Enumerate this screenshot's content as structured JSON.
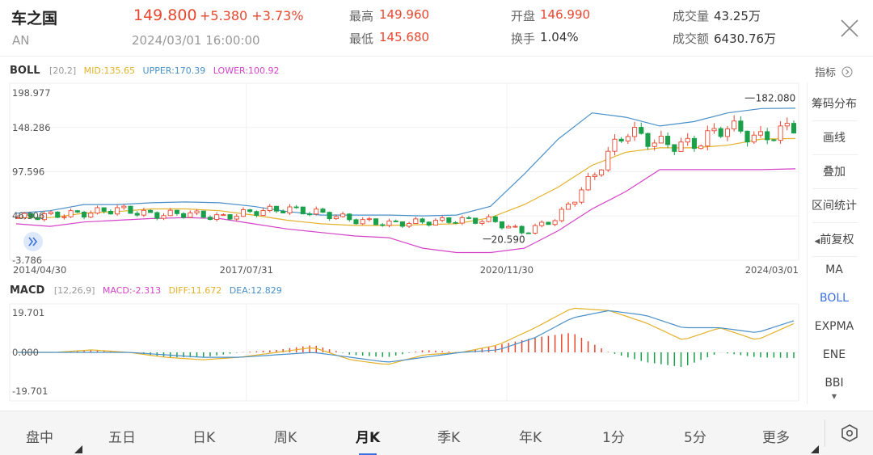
{
  "stock": {
    "name": "车之国",
    "code": "AN",
    "price": "149.800",
    "change": "+5.380 +3.73%",
    "time": "2024/03/01 16:00:00"
  },
  "stats": {
    "high_label": "最高",
    "high": "149.960",
    "low_label": "最低",
    "low": "145.680",
    "open_label": "开盘",
    "open": "146.990",
    "turnover_label": "换手",
    "turnover": "1.04%",
    "volume_label": "成交量",
    "volume": "43.25万",
    "amount_label": "成交额",
    "amount": "6430.76万"
  },
  "boll": {
    "name": "BOLL",
    "params": "[20,2]",
    "mid": "MID:135.65",
    "upper": "UPPER:170.39",
    "lower": "LOWER:100.92",
    "indicator_btn": "指标"
  },
  "macd": {
    "name": "MACD",
    "params": "[12,26,9]",
    "macd": "MACD:-2.313",
    "diff": "DIFF:11.672",
    "dea": "DEA:12.829"
  },
  "price_axis": [
    "198.977",
    "148.286",
    "97.596",
    "46.906",
    "-3.786"
  ],
  "macd_axis": [
    "19.701",
    "0.000",
    "-19.701"
  ],
  "date_axis": [
    "2014/04/30",
    "2017/07/31",
    "2020/11/30",
    "2024/03/01"
  ],
  "markers": {
    "high": "182.080",
    "low": "20.590"
  },
  "sidebar": {
    "items": [
      "筹码分布",
      "画线",
      "叠加",
      "区间统计",
      "前复权"
    ],
    "indicators": [
      "MA",
      "BOLL",
      "EXPMA",
      "ENE",
      "BBI"
    ]
  },
  "tabs": [
    "盘中",
    "五日",
    "日K",
    "周K",
    "月K",
    "季K",
    "年K",
    "1分",
    "5分",
    "更多"
  ],
  "colors": {
    "up": "#e8472f",
    "down": "#1aa04a",
    "mid": "#e3b12a",
    "upper": "#4a90c8",
    "lower": "#d442c8",
    "active": "#3b72e0"
  },
  "chart_data": [
    {
      "type": "candlestick",
      "title": "BOLL [20,2]",
      "x_start": "2014/04/30",
      "x_end": "2024/03/01",
      "x_ticks": [
        "2014/04/30",
        "2017/07/31",
        "2020/11/30",
        "2024/03/01"
      ],
      "ylim": [
        -3.786,
        198.977
      ],
      "y_ticks": [
        198.977,
        148.286,
        97.596,
        46.906,
        -3.786
      ],
      "annotations": [
        {
          "label": "182.080",
          "type": "max"
        },
        {
          "label": "20.590",
          "type": "min"
        }
      ],
      "series": [
        {
          "name": "MID",
          "values": [
            45,
            45,
            50,
            52,
            55,
            55,
            53,
            48,
            42,
            38,
            36,
            36,
            37,
            38,
            45,
            60,
            80,
            105,
            120,
            125,
            125,
            128,
            135,
            135.65
          ]
        },
        {
          "name": "UPPER",
          "values": [
            50,
            53,
            60,
            60,
            62,
            63,
            62,
            58,
            52,
            48,
            48,
            48,
            47,
            48,
            58,
            95,
            135,
            165,
            160,
            150,
            155,
            165,
            170,
            170.39
          ]
        },
        {
          "name": "LOWER",
          "values": [
            38,
            35,
            40,
            42,
            44,
            45,
            44,
            38,
            32,
            28,
            24,
            22,
            10,
            5,
            5,
            10,
            30,
            55,
            75,
            100,
            100,
            100,
            100,
            100.92
          ]
        },
        {
          "name": "Close",
          "values": [
            45,
            48,
            50,
            55,
            48,
            50,
            45,
            52,
            55,
            50,
            42,
            38,
            40,
            42,
            42,
            28,
            45,
            90,
            145,
            130,
            128,
            150,
            135,
            149.8
          ]
        }
      ]
    },
    {
      "type": "line",
      "title": "MACD [12,26,9]",
      "ylim": [
        -19.701,
        19.701
      ],
      "y_ticks": [
        19.701,
        0.0,
        -19.701
      ],
      "series": [
        {
          "name": "DIFF",
          "values": [
            0,
            0,
            1,
            0,
            -2,
            -3,
            -2,
            0,
            2,
            -3,
            -5,
            -1,
            0,
            3,
            10,
            18,
            17,
            12,
            5,
            10,
            5,
            11.672
          ]
        },
        {
          "name": "DEA",
          "values": [
            0,
            0,
            0,
            0,
            -1,
            -2,
            -2,
            -1,
            0,
            -2,
            -4,
            -2,
            0,
            1,
            6,
            14,
            17,
            15,
            10,
            10,
            8,
            12.829
          ]
        },
        {
          "name": "MACD",
          "values": [
            0,
            0,
            1,
            0,
            -2,
            -2,
            0,
            1,
            3,
            -1,
            -2,
            1,
            0,
            3,
            6,
            8,
            0,
            -4,
            -6,
            0,
            -2,
            -2.313
          ]
        }
      ]
    }
  ]
}
